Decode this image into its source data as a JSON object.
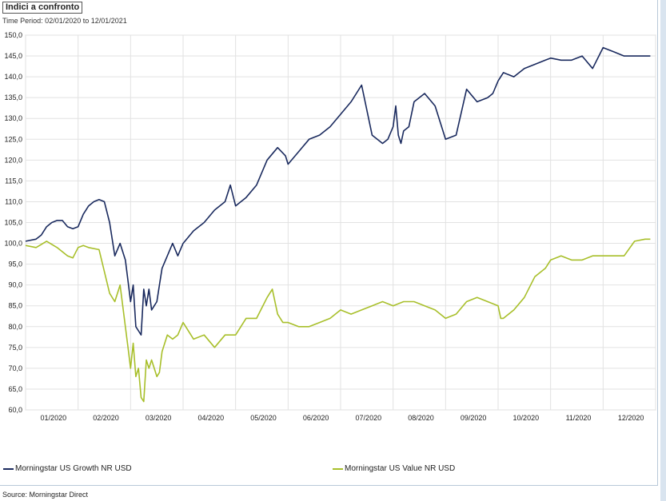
{
  "header": {
    "title": "Indici a confronto",
    "time_period": "Time Period: 02/01/2020 to 12/01/2021"
  },
  "footer": {
    "source": "Source: Morningstar Direct"
  },
  "chart_data": {
    "type": "line",
    "title": "Indici a confronto",
    "ylim": [
      60,
      150
    ],
    "yticks": [
      "60,0",
      "65,0",
      "70,0",
      "75,0",
      "80,0",
      "85,0",
      "90,0",
      "95,0",
      "100,0",
      "105,0",
      "110,0",
      "115,0",
      "120,0",
      "125,0",
      "130,0",
      "135,0",
      "140,0",
      "145,0",
      "150,0"
    ],
    "xticks": [
      "01/2020",
      "02/2020",
      "03/2020",
      "04/2020",
      "05/2020",
      "06/2020",
      "07/2020",
      "08/2020",
      "09/2020",
      "10/2020",
      "11/2020",
      "12/2020"
    ],
    "grid": true,
    "legend_position": "bottom",
    "series": [
      {
        "name": "Morningstar US Growth NR USD",
        "color": "#1a2a5e",
        "x": [
          0,
          0.2,
          0.3,
          0.4,
          0.5,
          0.6,
          0.7,
          0.8,
          0.9,
          1.0,
          1.1,
          1.15,
          1.2,
          1.3,
          1.4,
          1.5,
          1.6,
          1.7,
          1.8,
          1.9,
          1.95,
          2.0,
          2.05,
          2.1,
          2.15,
          2.2,
          2.25,
          2.3,
          2.35,
          2.4,
          2.45,
          2.5,
          2.55,
          2.6,
          2.7,
          2.8,
          2.9,
          3.0,
          3.2,
          3.4,
          3.6,
          3.8,
          3.9,
          4.0,
          4.2,
          4.4,
          4.6,
          4.8,
          4.95,
          5.0,
          5.2,
          5.4,
          5.6,
          5.8,
          6.0,
          6.2,
          6.4,
          6.6,
          6.8,
          6.9,
          7.0,
          7.05,
          7.1,
          7.15,
          7.2,
          7.3,
          7.4,
          7.6,
          7.8,
          8.0,
          8.2,
          8.4,
          8.6,
          8.8,
          8.9,
          9.0,
          9.05,
          9.1,
          9.3,
          9.5,
          9.7,
          9.9,
          10.0,
          10.2,
          10.4,
          10.6,
          10.8,
          11.0,
          11.2,
          11.4,
          11.6,
          11.7,
          11.8,
          11.9
        ],
        "values": [
          100.5,
          101,
          102,
          104,
          105,
          105.5,
          105.5,
          104,
          103.5,
          104,
          107,
          108,
          109,
          110,
          110.5,
          110,
          105,
          97,
          100,
          96,
          91,
          86,
          90,
          80,
          79,
          78,
          89,
          85,
          89,
          84,
          85,
          86,
          90,
          94,
          97,
          100,
          97,
          100,
          103,
          105,
          108,
          110,
          114,
          109,
          111,
          114,
          120,
          123,
          121,
          119,
          122,
          125,
          126,
          128,
          131,
          134,
          138,
          126,
          124,
          125,
          128,
          133,
          126,
          124,
          127,
          128,
          134,
          136,
          133,
          125,
          126,
          137,
          134,
          135,
          136,
          139,
          140,
          141,
          140,
          142,
          143,
          144,
          144.5,
          144,
          144,
          145,
          142,
          147,
          146,
          145,
          145,
          145,
          145,
          145
        ],
        "values_note": "time-indexed"
      }
    ]
  }
}
